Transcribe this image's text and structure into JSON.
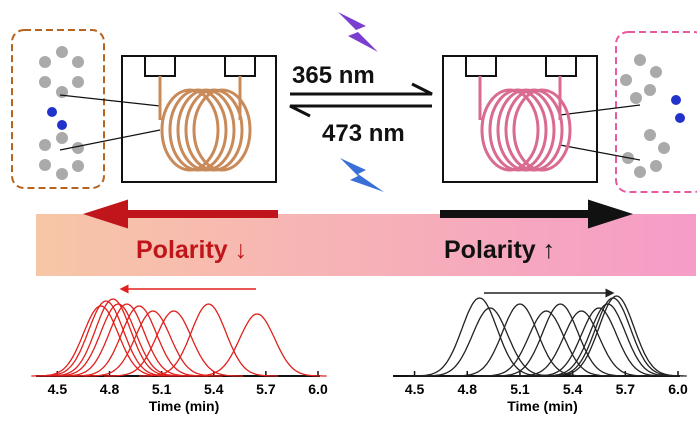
{
  "labels": {
    "forward": "365 nm",
    "backward": "473 nm",
    "left_polarity": "Polarity ↓",
    "right_polarity": "Polarity ↑"
  },
  "chart_data": [
    {
      "type": "peaks",
      "color": "#e0201c",
      "xlabel": "Time (min)",
      "x": [
        4.75,
        4.78,
        4.82,
        4.85,
        4.9,
        4.97,
        5.05,
        5.17,
        5.37,
        5.65
      ],
      "values": [
        0.7,
        0.75,
        0.77,
        0.72,
        0.72,
        0.7,
        0.65,
        0.65,
        0.72,
        0.62
      ],
      "xlim": [
        4.4,
        6.0
      ],
      "ylim": [
        0,
        1
      ],
      "xticks": [
        4.5,
        4.8,
        5.1,
        5.4,
        5.7,
        {
          "value": 6,
          "label": "6.0"
        }
      ]
    },
    {
      "type": "peaks",
      "color": "#222222",
      "xlabel": "Time (min)",
      "x": [
        4.87,
        4.93,
        5.1,
        5.25,
        5.33,
        5.45,
        5.55,
        5.6,
        5.63,
        5.65
      ],
      "values": [
        0.78,
        0.68,
        0.72,
        0.65,
        0.72,
        0.65,
        0.68,
        0.72,
        0.78,
        0.8
      ],
      "xlim": [
        4.4,
        6.0
      ],
      "ylim": [
        0,
        1
      ],
      "xticks": [
        4.5,
        4.8,
        5.1,
        5.4,
        5.7,
        {
          "value": 6,
          "label": "6.0"
        }
      ]
    }
  ]
}
